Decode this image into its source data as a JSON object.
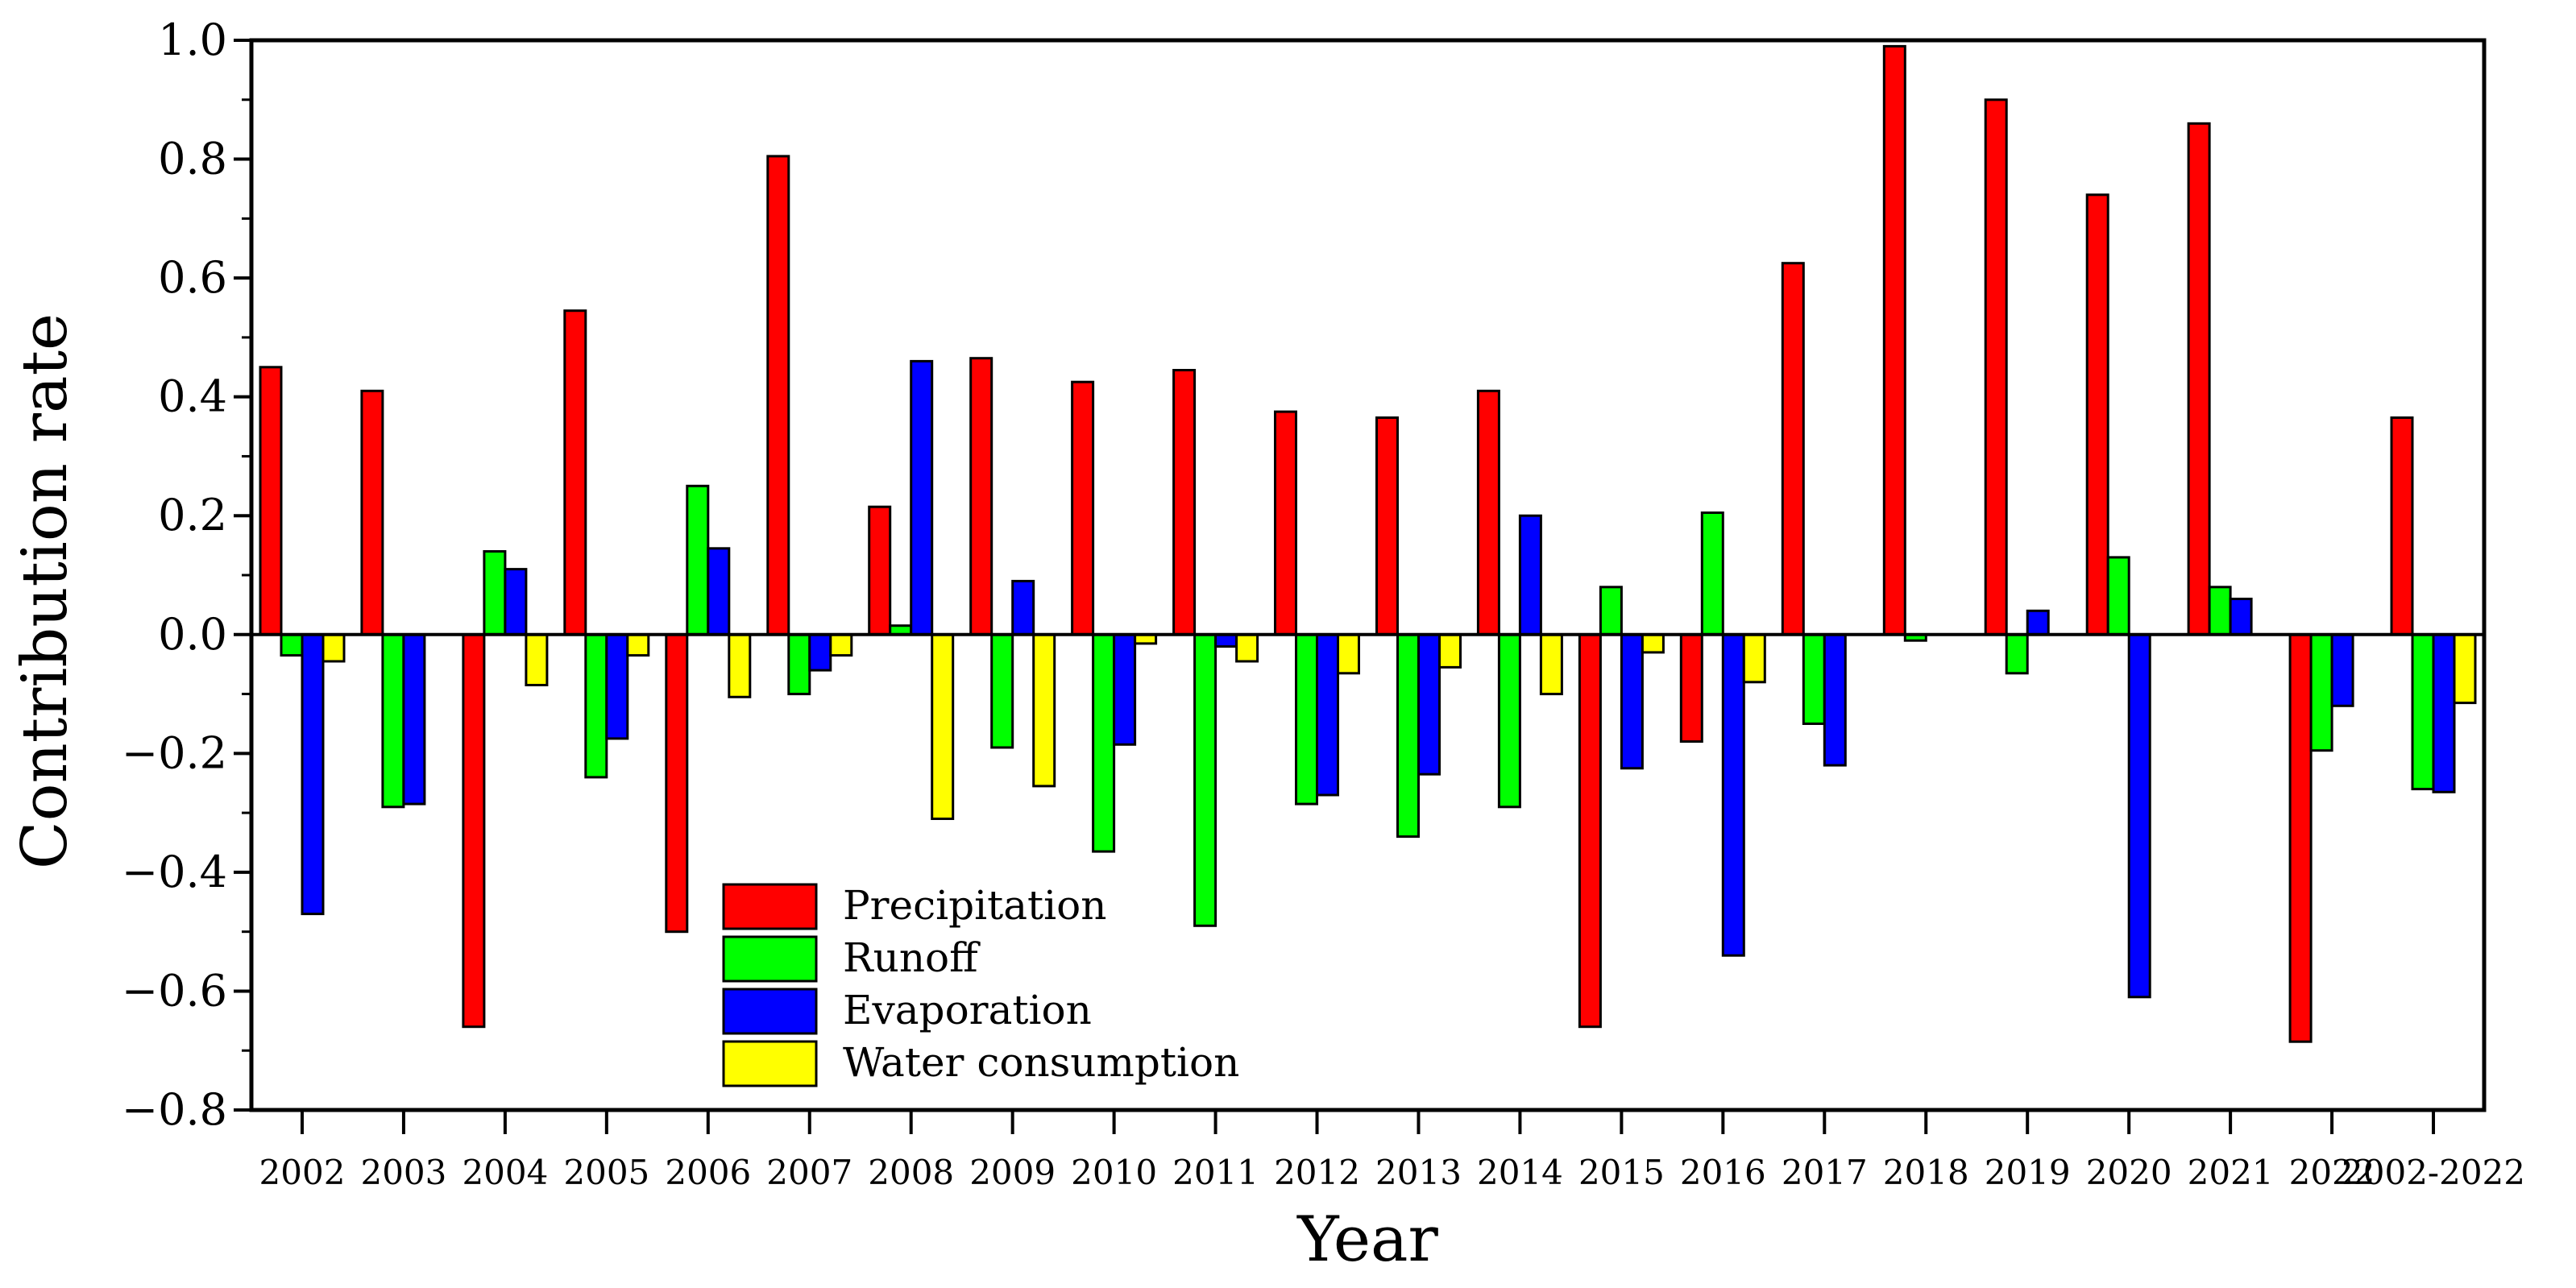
{
  "chart_data": {
    "type": "bar",
    "title": "",
    "xlabel": "Year",
    "ylabel": "Contribution rate",
    "ylim": [
      -0.8,
      1.0
    ],
    "yticks": [
      "1.0",
      "0.8",
      "0.6",
      "0.4",
      "0.2",
      "0.0",
      "−0.2",
      "−0.4",
      "−0.6",
      "−0.8"
    ],
    "ytick_values": [
      1.0,
      0.8,
      0.6,
      0.4,
      0.2,
      0.0,
      -0.2,
      -0.4,
      -0.6,
      -0.8
    ],
    "legend_position": "lower-left",
    "categories": [
      "2002",
      "2003",
      "2004",
      "2005",
      "2006",
      "2007",
      "2008",
      "2009",
      "2010",
      "2011",
      "2012",
      "2013",
      "2014",
      "2015",
      "2016",
      "2017",
      "2018",
      "2019",
      "2020",
      "2021",
      "2022",
      "2002-2022"
    ],
    "series": [
      {
        "name": "Precipitation",
        "color": "#ff0000",
        "values": [
          0.45,
          0.41,
          -0.66,
          0.545,
          -0.5,
          0.805,
          0.215,
          0.465,
          0.425,
          0.445,
          0.375,
          0.365,
          0.41,
          -0.66,
          -0.18,
          0.625,
          0.99,
          0.9,
          0.74,
          0.86,
          -0.685,
          0.365
        ]
      },
      {
        "name": "Runoff",
        "color": "#00ff00",
        "values": [
          -0.035,
          -0.29,
          0.14,
          -0.24,
          0.25,
          -0.1,
          0.015,
          -0.19,
          -0.365,
          -0.49,
          -0.285,
          -0.34,
          -0.29,
          0.08,
          0.205,
          -0.15,
          -0.01,
          -0.065,
          0.13,
          0.08,
          -0.195,
          -0.26
        ]
      },
      {
        "name": "Evaporation",
        "color": "#0000ff",
        "values": [
          -0.47,
          -0.285,
          0.11,
          -0.175,
          0.145,
          -0.06,
          0.46,
          0.09,
          -0.185,
          -0.02,
          -0.27,
          -0.235,
          0.2,
          -0.225,
          -0.54,
          -0.22,
          0.0,
          0.04,
          -0.61,
          0.06,
          -0.12,
          -0.265
        ]
      },
      {
        "name": "Water consumption",
        "color": "#ffff00",
        "values": [
          -0.045,
          0.0,
          -0.085,
          -0.035,
          -0.105,
          -0.035,
          -0.31,
          -0.255,
          -0.015,
          -0.045,
          -0.065,
          -0.055,
          -0.1,
          -0.03,
          -0.08,
          0.0,
          0.0,
          0.0,
          0.0,
          0.0,
          0.0,
          -0.115
        ]
      }
    ]
  }
}
